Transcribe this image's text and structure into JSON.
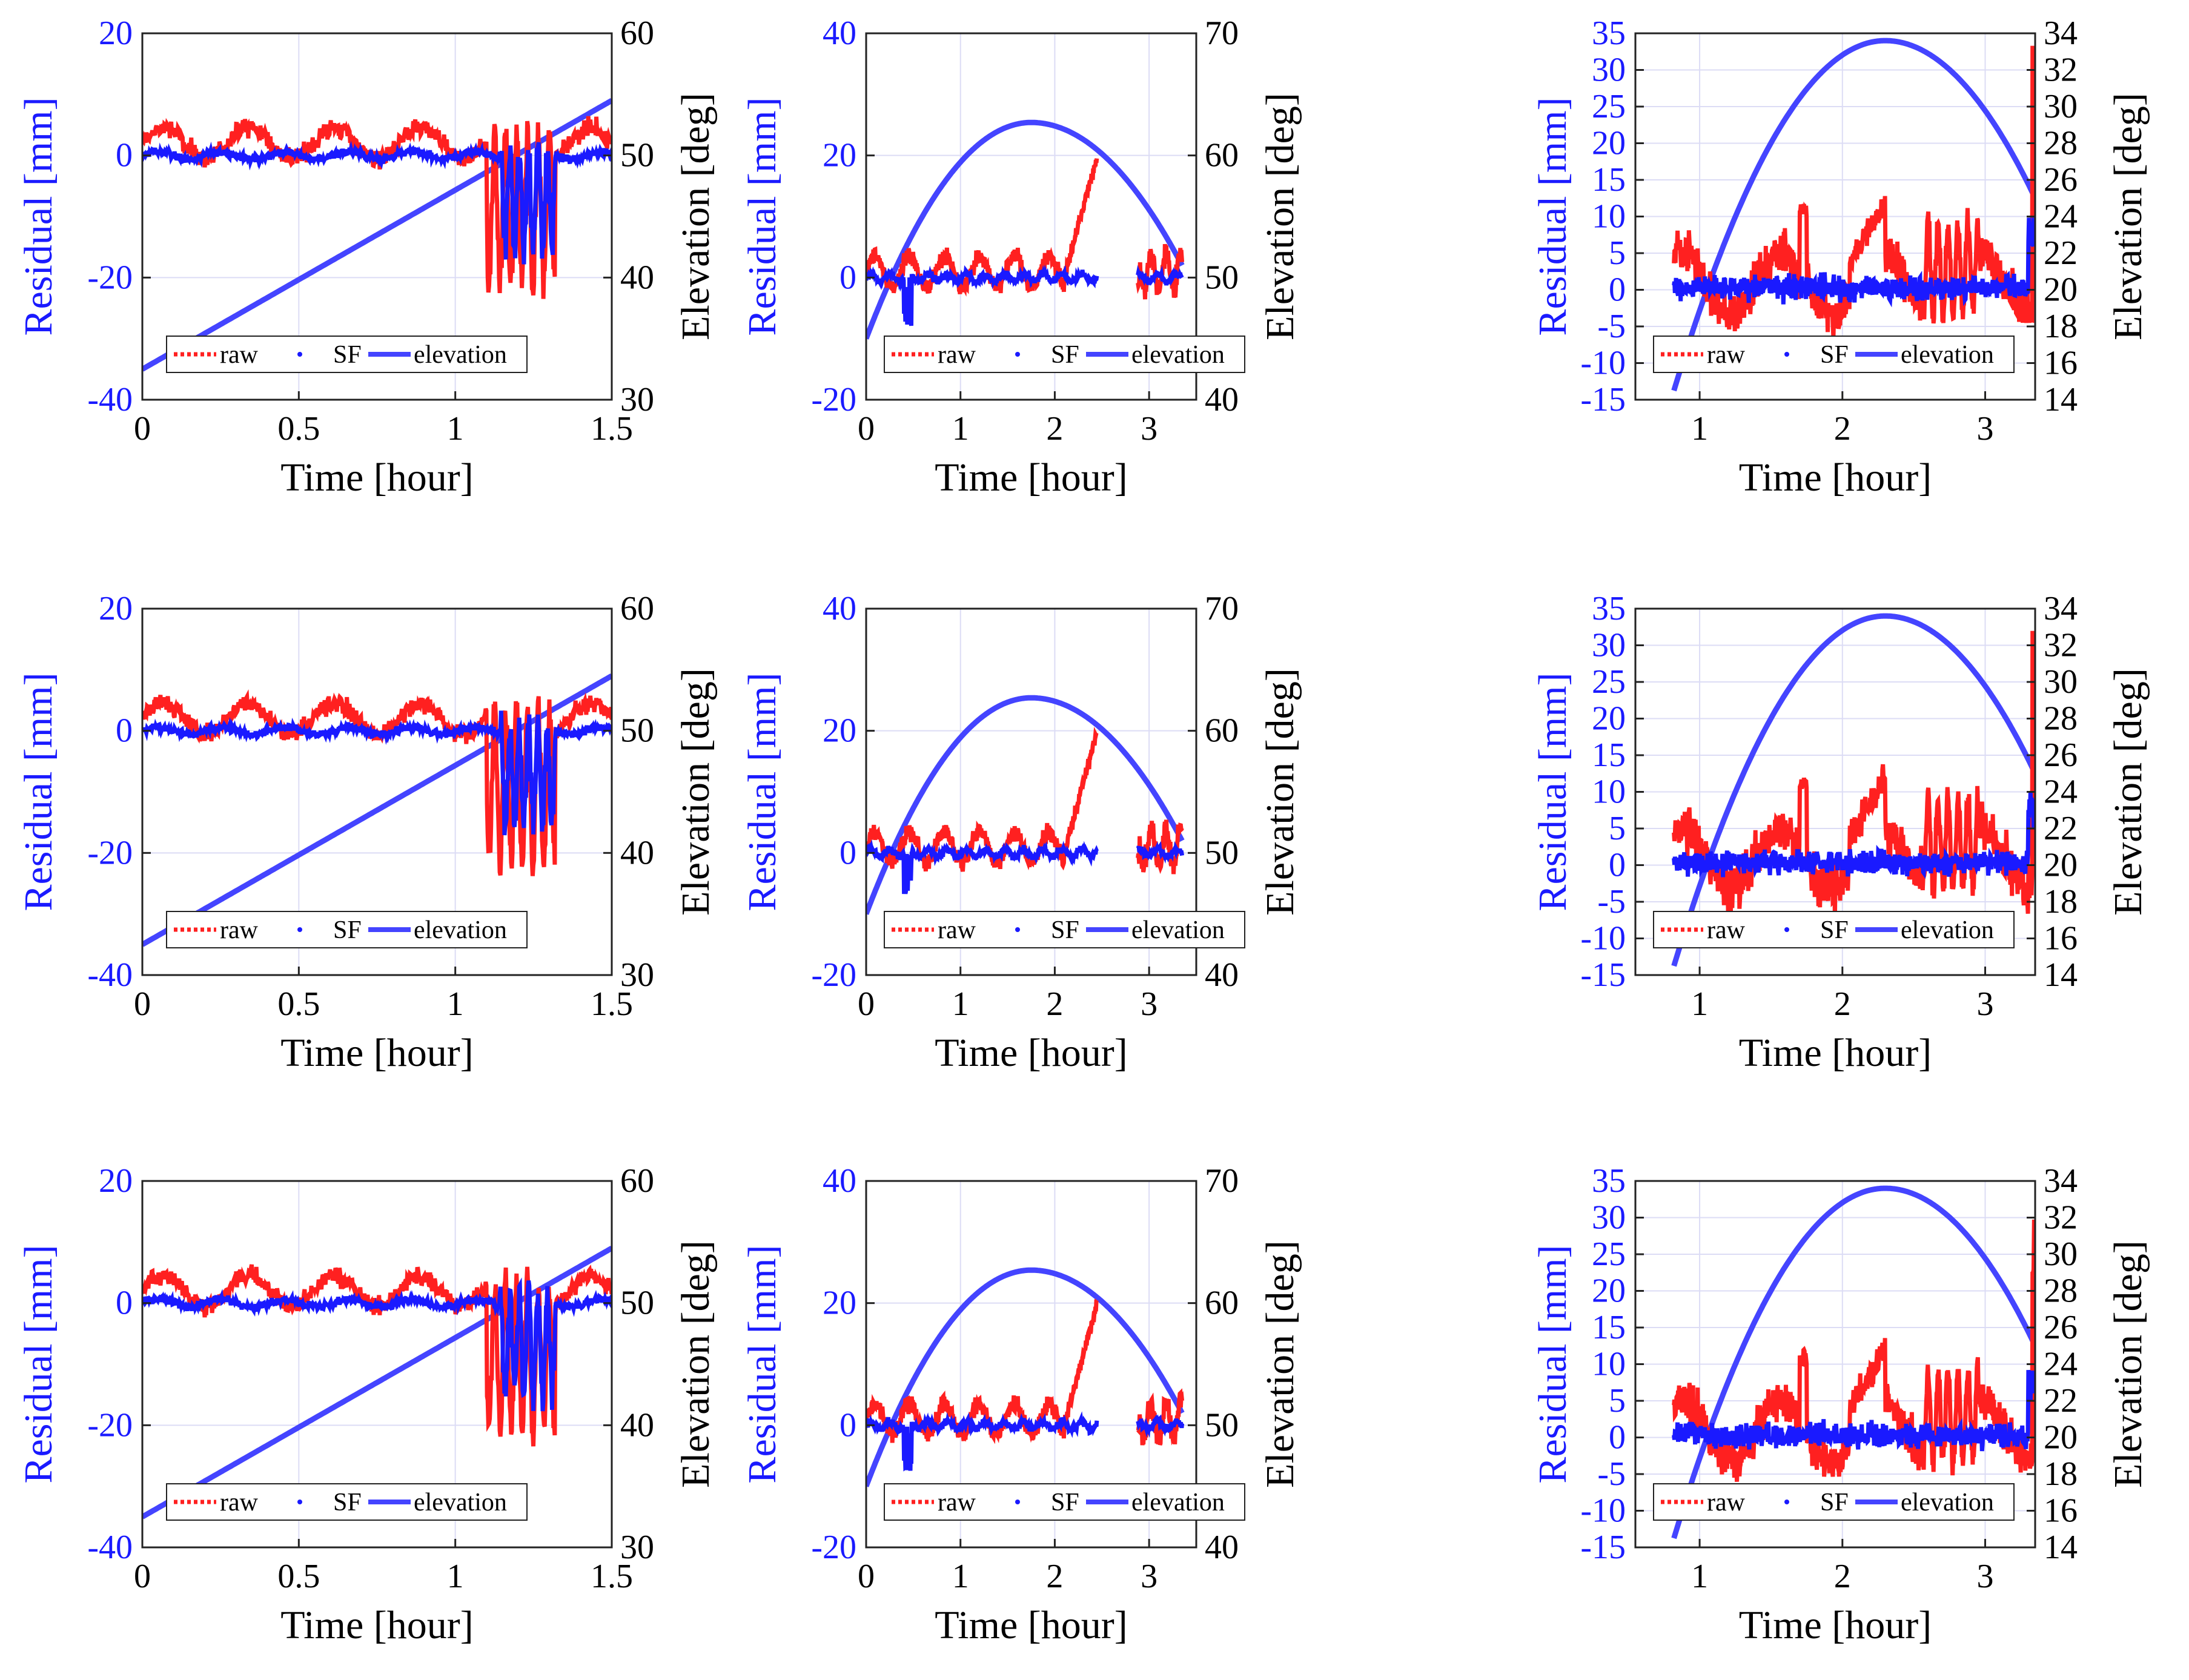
{
  "colors": {
    "raw": "#ff2020",
    "sf": "#1a1aff",
    "elevation": "#4444ff",
    "grid": "#dcdcf5",
    "axis_left": "#1a1aff",
    "axis_right": "#000000"
  },
  "labels": {
    "xlabel": "Time [hour]",
    "ylabel_left": "Residual [mm]",
    "ylabel_right": "Elevation [deg]",
    "legend": [
      "raw",
      "SF",
      "elevation"
    ]
  },
  "chart_data": [
    {
      "id": "r1c1",
      "type": "line",
      "xlim": [
        0,
        1.5
      ],
      "xticks": [
        0,
        0.5,
        1,
        1.5
      ],
      "xtick_labels": [
        "0",
        "0.5",
        "1",
        "1.5"
      ],
      "ylim": [
        -40,
        20
      ],
      "yticks": [
        -40,
        -20,
        0,
        20
      ],
      "ytick_labels": [
        "-40",
        "-20",
        "0",
        "20"
      ],
      "y2lim": [
        30,
        60
      ],
      "y2ticks": [
        30,
        40,
        50,
        60
      ],
      "y2tick_labels": [
        "30",
        "40",
        "50",
        "60"
      ],
      "data_start": 0,
      "data_end": 1.5,
      "gaps": [],
      "elevation": {
        "shape": "linear",
        "start": [
          0,
          32.5
        ],
        "end": [
          1.5,
          54.5
        ]
      },
      "raw_level": "0 to 5 mm, dips to -20 mm near 1.1-1.3 h",
      "sf_level": "about 0 mm, dips to -17 mm near 1.15-1.3 h"
    },
    {
      "id": "r1c2",
      "type": "line",
      "xlim": [
        0,
        3.5
      ],
      "xticks": [
        0,
        1,
        2,
        3
      ],
      "xtick_labels": [
        "0",
        "1",
        "2",
        "3"
      ],
      "ylim": [
        -20,
        40
      ],
      "yticks": [
        -20,
        0,
        20,
        40
      ],
      "ytick_labels": [
        "-20",
        "0",
        "20",
        "40"
      ],
      "y2lim": [
        40,
        70
      ],
      "y2ticks": [
        40,
        50,
        60,
        70
      ],
      "y2tick_labels": [
        "40",
        "50",
        "60",
        "70"
      ],
      "data_start": 0,
      "data_end": 3.35,
      "gaps": [
        [
          2.45,
          2.88
        ]
      ],
      "elevation": {
        "shape": "arc",
        "start": [
          0,
          45
        ],
        "peak": [
          1.75,
          62.7
        ],
        "end": [
          3.35,
          51
        ]
      },
      "raw_level": "0 to 5 mm, rising to 20 mm near 2.4 h",
      "sf_level": "about 0 mm"
    },
    {
      "id": "r1c3",
      "type": "line",
      "xlim": [
        0.55,
        3.35
      ],
      "xticks": [
        1,
        2,
        3
      ],
      "xtick_labels": [
        "1",
        "2",
        "3"
      ],
      "ylim": [
        -15,
        35
      ],
      "yticks": [
        -15,
        -10,
        -5,
        0,
        5,
        10,
        15,
        20,
        25,
        30,
        35
      ],
      "ytick_labels": [
        "-15",
        "-10",
        "-5",
        "0",
        "5",
        "10",
        "15",
        "20",
        "25",
        "30",
        "35"
      ],
      "y2lim": [
        14,
        34
      ],
      "y2ticks": [
        14,
        16,
        18,
        20,
        22,
        24,
        26,
        28,
        30,
        32,
        34
      ],
      "y2tick_labels": [
        "14",
        "16",
        "18",
        "20",
        "22",
        "24",
        "26",
        "28",
        "30",
        "32",
        "34"
      ],
      "data_start": 0.82,
      "data_end": 3.35,
      "gaps": [],
      "elevation": {
        "shape": "arc",
        "start": [
          0.82,
          14.5
        ],
        "peak": [
          2.3,
          33.6
        ],
        "end": [
          3.35,
          25
        ]
      },
      "raw_level": "-7 to 13 mm, spikes to 35 mm at end",
      "sf_level": "about 0 mm"
    },
    {
      "id": "r2c1",
      "type": "line",
      "xlim": [
        0,
        1.5
      ],
      "xticks": [
        0,
        0.5,
        1,
        1.5
      ],
      "xtick_labels": [
        "0",
        "0.5",
        "1",
        "1.5"
      ],
      "ylim": [
        -40,
        20
      ],
      "yticks": [
        -40,
        -20,
        0,
        20
      ],
      "ytick_labels": [
        "-40",
        "-20",
        "0",
        "20"
      ],
      "y2lim": [
        30,
        60
      ],
      "y2ticks": [
        30,
        40,
        50,
        60
      ],
      "y2tick_labels": [
        "30",
        "40",
        "50",
        "60"
      ],
      "data_start": 0,
      "data_end": 1.5,
      "gaps": [],
      "elevation": {
        "shape": "linear",
        "start": [
          0,
          32.5
        ],
        "end": [
          1.5,
          54.5
        ]
      },
      "raw_level": "0 to 5 mm, dips to -20 mm near 1.1-1.3 h",
      "sf_level": "about 0 mm, dips to -17 mm near 1.15-1.3 h"
    },
    {
      "id": "r2c2",
      "type": "line",
      "xlim": [
        0,
        3.5
      ],
      "xticks": [
        0,
        1,
        2,
        3
      ],
      "xtick_labels": [
        "0",
        "1",
        "2",
        "3"
      ],
      "ylim": [
        -20,
        40
      ],
      "yticks": [
        -20,
        0,
        20,
        40
      ],
      "ytick_labels": [
        "-20",
        "0",
        "20",
        "40"
      ],
      "y2lim": [
        40,
        70
      ],
      "y2ticks": [
        40,
        50,
        60,
        70
      ],
      "y2tick_labels": [
        "40",
        "50",
        "60",
        "70"
      ],
      "data_start": 0,
      "data_end": 3.35,
      "gaps": [
        [
          2.45,
          2.88
        ]
      ],
      "elevation": {
        "shape": "arc",
        "start": [
          0,
          45
        ],
        "peak": [
          1.75,
          62.7
        ],
        "end": [
          3.35,
          51
        ]
      },
      "raw_level": "0 to 5 mm, rising to 20 mm near 2.4 h",
      "sf_level": "about 0 mm"
    },
    {
      "id": "r2c3",
      "type": "line",
      "xlim": [
        0.55,
        3.35
      ],
      "xticks": [
        1,
        2,
        3
      ],
      "xtick_labels": [
        "1",
        "2",
        "3"
      ],
      "ylim": [
        -15,
        35
      ],
      "yticks": [
        -15,
        -10,
        -5,
        0,
        5,
        10,
        15,
        20,
        25,
        30,
        35
      ],
      "ytick_labels": [
        "-15",
        "-10",
        "-5",
        "0",
        "5",
        "10",
        "15",
        "20",
        "25",
        "30",
        "35"
      ],
      "y2lim": [
        14,
        34
      ],
      "y2ticks": [
        14,
        16,
        18,
        20,
        22,
        24,
        26,
        28,
        30,
        32,
        34
      ],
      "y2tick_labels": [
        "14",
        "16",
        "18",
        "20",
        "22",
        "24",
        "26",
        "28",
        "30",
        "32",
        "34"
      ],
      "data_start": 0.82,
      "data_end": 3.35,
      "gaps": [],
      "elevation": {
        "shape": "arc",
        "start": [
          0.82,
          14.5
        ],
        "peak": [
          2.3,
          33.6
        ],
        "end": [
          3.35,
          25
        ]
      },
      "raw_level": "-7 to 13 mm, spikes to 35 mm at end",
      "sf_level": "about 0 mm"
    },
    {
      "id": "r3c1",
      "type": "line",
      "xlim": [
        0,
        1.5
      ],
      "xticks": [
        0,
        0.5,
        1,
        1.5
      ],
      "xtick_labels": [
        "0",
        "0.5",
        "1",
        "1.5"
      ],
      "ylim": [
        -40,
        20
      ],
      "yticks": [
        -40,
        -20,
        0,
        20
      ],
      "ytick_labels": [
        "-40",
        "-20",
        "0",
        "20"
      ],
      "y2lim": [
        30,
        60
      ],
      "y2ticks": [
        30,
        40,
        50,
        60
      ],
      "y2tick_labels": [
        "30",
        "40",
        "50",
        "60"
      ],
      "data_start": 0,
      "data_end": 1.5,
      "gaps": [],
      "elevation": {
        "shape": "linear",
        "start": [
          0,
          32.5
        ],
        "end": [
          1.5,
          54.5
        ]
      },
      "raw_level": "0 to 5 mm, dips to -20 mm near 1.1-1.3 h",
      "sf_level": "about 0 mm, dips to -15 mm near 1.3 h"
    },
    {
      "id": "r3c2",
      "type": "line",
      "xlim": [
        0,
        3.5
      ],
      "xticks": [
        0,
        1,
        2,
        3
      ],
      "xtick_labels": [
        "0",
        "1",
        "2",
        "3"
      ],
      "ylim": [
        -20,
        40
      ],
      "yticks": [
        -20,
        0,
        20,
        40
      ],
      "ytick_labels": [
        "-20",
        "0",
        "20",
        "40"
      ],
      "y2lim": [
        40,
        70
      ],
      "y2ticks": [
        40,
        50,
        60,
        70
      ],
      "y2tick_labels": [
        "40",
        "50",
        "60",
        "70"
      ],
      "data_start": 0,
      "data_end": 3.35,
      "gaps": [
        [
          2.45,
          2.88
        ]
      ],
      "elevation": {
        "shape": "arc",
        "start": [
          0,
          45
        ],
        "peak": [
          1.75,
          62.7
        ],
        "end": [
          3.35,
          51
        ]
      },
      "raw_level": "0 to 5 mm, rising to 20 mm near 2.4 h",
      "sf_level": "about 0 mm"
    },
    {
      "id": "r3c3",
      "type": "line",
      "xlim": [
        0.55,
        3.35
      ],
      "xticks": [
        1,
        2,
        3
      ],
      "xtick_labels": [
        "1",
        "2",
        "3"
      ],
      "ylim": [
        -15,
        35
      ],
      "yticks": [
        -15,
        -10,
        -5,
        0,
        5,
        10,
        15,
        20,
        25,
        30,
        35
      ],
      "ytick_labels": [
        "-15",
        "-10",
        "-5",
        "0",
        "5",
        "10",
        "15",
        "20",
        "25",
        "30",
        "35"
      ],
      "y2lim": [
        14,
        34
      ],
      "y2ticks": [
        14,
        16,
        18,
        20,
        22,
        24,
        26,
        28,
        30,
        32,
        34
      ],
      "y2tick_labels": [
        "14",
        "16",
        "18",
        "20",
        "22",
        "24",
        "26",
        "28",
        "30",
        "32",
        "34"
      ],
      "data_start": 0.82,
      "data_end": 3.35,
      "gaps": [],
      "elevation": {
        "shape": "arc",
        "start": [
          0.82,
          14.5
        ],
        "peak": [
          2.3,
          33.6
        ],
        "end": [
          3.35,
          25
        ]
      },
      "raw_level": "-7 to 13 mm, spikes to 35 mm at end",
      "sf_level": "about 0 mm"
    }
  ]
}
